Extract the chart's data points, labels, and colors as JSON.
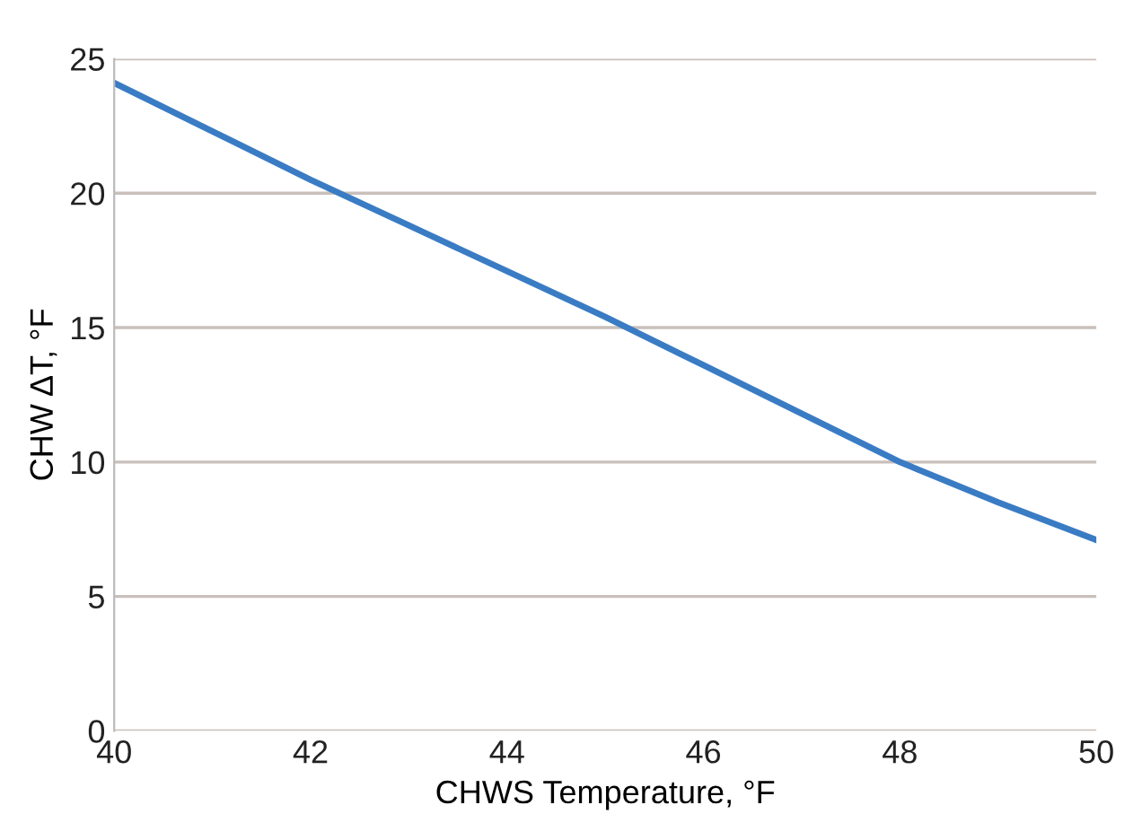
{
  "chart_data": {
    "type": "line",
    "xlabel": "CHWS Temperature, °F",
    "ylabel": "CHW ΔT, °F",
    "x": [
      40,
      41,
      42,
      43,
      44,
      45,
      46,
      47,
      48,
      49,
      50
    ],
    "series": [
      {
        "color": "#3a7cc4",
        "values": [
          24.1,
          22.3,
          20.5,
          18.8,
          17.1,
          15.4,
          13.6,
          11.8,
          10.0,
          8.5,
          7.1
        ]
      }
    ],
    "xlim": [
      40,
      50
    ],
    "ylim": [
      0,
      25
    ],
    "xticks": [
      40,
      42,
      44,
      46,
      48,
      50
    ],
    "yticks": [
      0,
      5,
      10,
      15,
      20,
      25
    ],
    "grid": "y",
    "marker": "none",
    "line_style": "solid"
  }
}
